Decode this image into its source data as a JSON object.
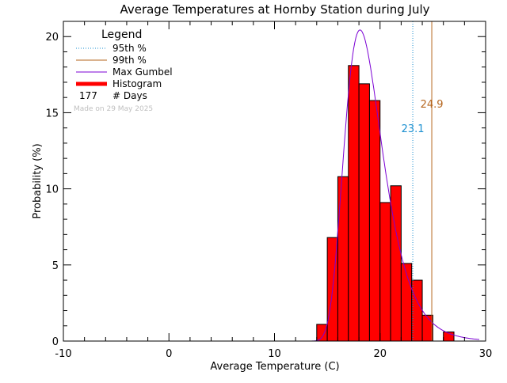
{
  "chart_data": {
    "type": "bar",
    "title": "Average Temperatures at Hornby Station during July",
    "xlabel": "Average Temperature (C)",
    "ylabel": "Probability (%)",
    "xlim": [
      -10,
      30
    ],
    "ylim": [
      0,
      21
    ],
    "xticks": [
      -10,
      0,
      10,
      20,
      30
    ],
    "yticks": [
      0,
      5,
      10,
      15,
      20
    ],
    "watermark": "Made on 29 May 2025",
    "legend": {
      "title": "Legend",
      "placement": "top-left",
      "items": [
        {
          "label": "95th %",
          "style": "dotted",
          "color": "#1a8fd0"
        },
        {
          "label": "99th %",
          "style": "solid",
          "color": "#b5651d"
        },
        {
          "label": "Max Gumbel",
          "style": "solid",
          "color": "#7b00d4"
        },
        {
          "label": "Histogram",
          "style": "thick",
          "color": "#ff0000"
        }
      ],
      "count_value": "177",
      "count_label": "# Days"
    },
    "bin_width": 1,
    "bins": [
      {
        "x0": 14,
        "value": 1.1
      },
      {
        "x0": 15,
        "value": 6.8
      },
      {
        "x0": 16,
        "value": 10.8
      },
      {
        "x0": 17,
        "value": 18.1
      },
      {
        "x0": 18,
        "value": 16.9
      },
      {
        "x0": 19,
        "value": 15.8
      },
      {
        "x0": 20,
        "value": 9.1
      },
      {
        "x0": 21,
        "value": 10.2
      },
      {
        "x0": 22,
        "value": 5.1
      },
      {
        "x0": 23,
        "value": 4.0
      },
      {
        "x0": 24,
        "value": 1.7
      },
      {
        "x0": 25,
        "value": 0.0
      },
      {
        "x0": 26,
        "value": 0.6
      }
    ],
    "gumbel": {
      "mu": 18.1,
      "beta": 1.8
    },
    "p95": {
      "value": 23.1,
      "label": "23.1",
      "color": "#1a8fd0"
    },
    "p99": {
      "value": 24.9,
      "label": "24.9",
      "color": "#b5651d"
    }
  }
}
